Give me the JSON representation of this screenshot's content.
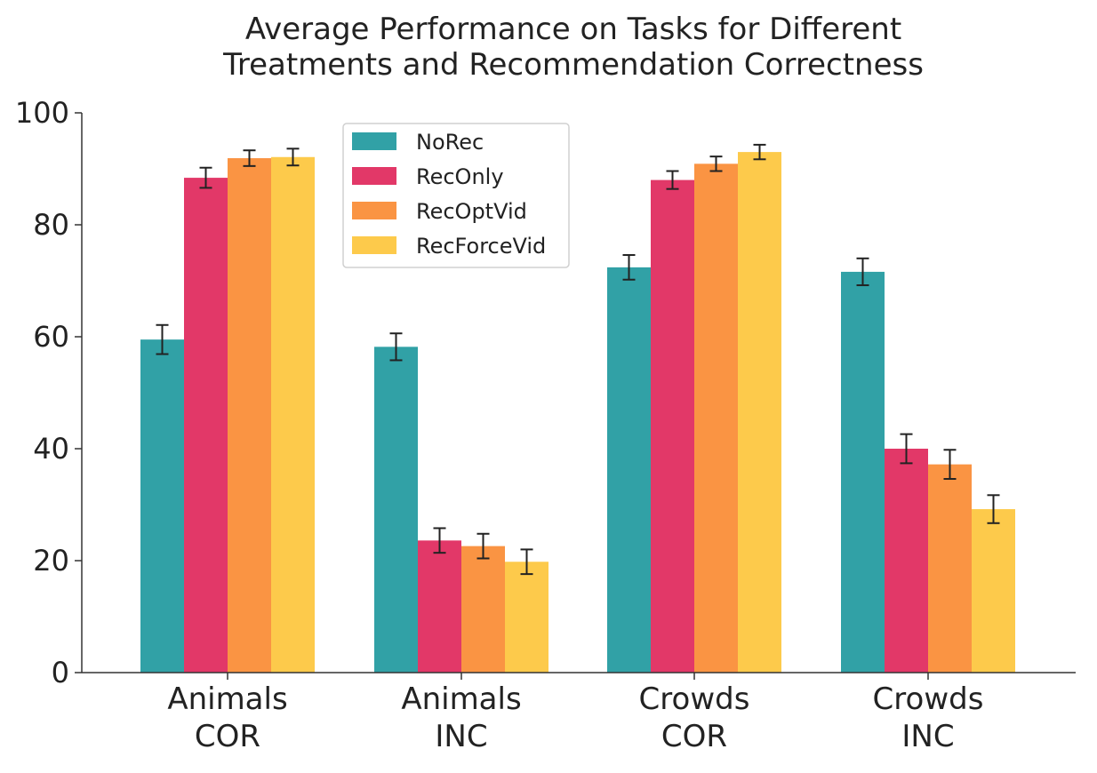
{
  "chart_data": {
    "type": "bar",
    "title_lines": [
      "Average Performance on Tasks for Different",
      "Treatments and Recommendation Correctness"
    ],
    "categories": [
      [
        "Animals",
        "COR"
      ],
      [
        "Animals",
        "INC"
      ],
      [
        "Crowds",
        "COR"
      ],
      [
        "Crowds",
        "INC"
      ]
    ],
    "series": [
      {
        "name": "NoRec",
        "color": "#31a1a6",
        "values": [
          59.5,
          58.2,
          72.4,
          71.6
        ],
        "errors": [
          2.6,
          2.4,
          2.2,
          2.4
        ]
      },
      {
        "name": "RecOnly",
        "color": "#e23868",
        "values": [
          88.4,
          23.6,
          88.0,
          40.0
        ],
        "errors": [
          1.8,
          2.2,
          1.6,
          2.6
        ]
      },
      {
        "name": "RecOptVid",
        "color": "#fa9443",
        "values": [
          91.9,
          22.6,
          90.9,
          37.2
        ],
        "errors": [
          1.4,
          2.2,
          1.3,
          2.6
        ]
      },
      {
        "name": "RecForceVid",
        "color": "#fdca4b",
        "values": [
          92.1,
          19.8,
          93.0,
          29.2
        ],
        "errors": [
          1.5,
          2.2,
          1.3,
          2.5
        ]
      }
    ],
    "ylim": [
      0,
      100
    ],
    "yticks": [
      0,
      20,
      40,
      60,
      80,
      100
    ],
    "xlabel": "",
    "ylabel": "",
    "grid": false,
    "legend_position": "top-left-center"
  }
}
